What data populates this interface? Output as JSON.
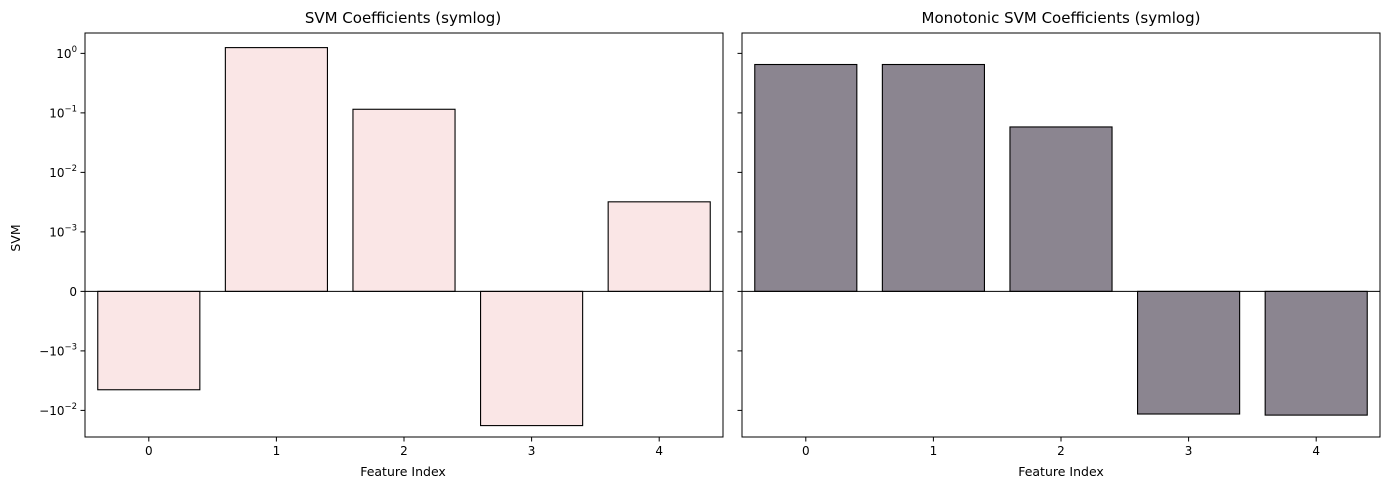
{
  "chart_data": [
    {
      "type": "bar",
      "title": "SVM Coefficients (symlog)",
      "xlabel": "Feature Index",
      "ylabel": "SVM",
      "yscale": "symlog",
      "linthresh": 0.001,
      "ylim": [
        -0.028,
        2.2
      ],
      "categories": [
        "0",
        "1",
        "2",
        "3",
        "4"
      ],
      "values": [
        -0.0045,
        1.25,
        0.115,
        -0.018,
        0.0032
      ],
      "bar_color": "#fae6e6",
      "edge_color": "#000000",
      "y_ticks": [
        {
          "value": 1,
          "base": "10",
          "exp": "0",
          "neg": false
        },
        {
          "value": 0.1,
          "base": "10",
          "exp": "−1",
          "neg": false
        },
        {
          "value": 0.01,
          "base": "10",
          "exp": "−2",
          "neg": false
        },
        {
          "value": 0.001,
          "base": "10",
          "exp": "−3",
          "neg": false
        },
        {
          "value": 0,
          "base": "0",
          "exp": "",
          "neg": false
        },
        {
          "value": -0.001,
          "base": "10",
          "exp": "−3",
          "neg": true
        },
        {
          "value": -0.01,
          "base": "10",
          "exp": "−2",
          "neg": true
        }
      ]
    },
    {
      "type": "bar",
      "title": "Monotonic SVM Coefficients (symlog)",
      "xlabel": "Feature Index",
      "ylabel": "",
      "yscale": "symlog",
      "linthresh": 0.001,
      "ylim": [
        -0.028,
        2.2
      ],
      "categories": [
        "0",
        "1",
        "2",
        "3",
        "4"
      ],
      "values": [
        0.65,
        0.65,
        0.058,
        -0.0115,
        -0.012
      ],
      "bar_color": "#8b8590",
      "edge_color": "#000000",
      "y_ticks": [
        {
          "value": 1,
          "base": "",
          "exp": "",
          "neg": false
        },
        {
          "value": 0.1,
          "base": "",
          "exp": "",
          "neg": false
        },
        {
          "value": 0.01,
          "base": "",
          "exp": "",
          "neg": false
        },
        {
          "value": 0.001,
          "base": "",
          "exp": "",
          "neg": false
        },
        {
          "value": 0,
          "base": "",
          "exp": "",
          "neg": false
        },
        {
          "value": -0.001,
          "base": "",
          "exp": "",
          "neg": false
        },
        {
          "value": -0.01,
          "base": "",
          "exp": "",
          "neg": false
        }
      ]
    }
  ]
}
